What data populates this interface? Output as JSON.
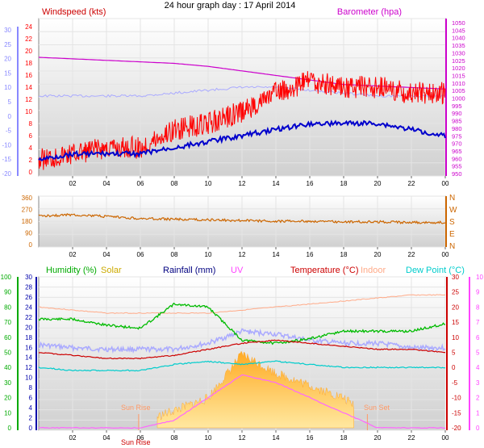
{
  "title": "24 hour graph day : 17 April 2014",
  "colors": {
    "wind": "#ff0000",
    "gust_dark": "#0000cc",
    "baro": "#cc00cc",
    "baro_light": "#aaaaff",
    "dir": "#cc6600",
    "humidity": "#00bb00",
    "solar": "#ccaa00",
    "rain": "#000080",
    "uv": "#ff66ff",
    "temperature": "#cc0000",
    "indoor": "#ffaa88",
    "dewpoint": "#00cccc",
    "left_axis": "#8888ff",
    "rain_axis": "#0000aa",
    "hum_axis": "#00aa00",
    "uv_axis": "#ff44ff"
  },
  "panels": {
    "wind": {
      "left_label": "Windspeed (kts)",
      "right_label": "Barometer (hpa)",
      "left_ticks": [
        "24",
        "22",
        "20",
        "18",
        "16",
        "14",
        "12",
        "10",
        "8",
        "6",
        "4",
        "2",
        "0"
      ],
      "outer_left_ticks": [
        "30",
        "25",
        "20",
        "15",
        "10",
        "5",
        "0",
        "-5",
        "-10",
        "-15",
        "-20"
      ],
      "right_ticks": [
        "1050",
        "1045",
        "1040",
        "1035",
        "1030",
        "1025",
        "1020",
        "1015",
        "1010",
        "1005",
        "1000",
        "995",
        "990",
        "985",
        "980",
        "975",
        "970",
        "965",
        "960",
        "955",
        "950"
      ]
    },
    "direction": {
      "left_ticks": [
        "360",
        "270",
        "180",
        "90",
        "0"
      ],
      "right_ticks": [
        "N",
        "W",
        "S",
        "E",
        "N"
      ]
    },
    "lower": {
      "labels": {
        "humidity": "Humidity (%)",
        "solar": "Solar",
        "rain": "Rainfall (mm)",
        "uv": "UV",
        "temperature": "Temperature (°C)",
        "indoor": "Indoor",
        "dewpoint": "Dew Point (°C)"
      },
      "hum_ticks": [
        "100",
        "90",
        "80",
        "70",
        "60",
        "50",
        "40",
        "30",
        "20",
        "10",
        "0"
      ],
      "left_ticks": [
        "30",
        "28",
        "26",
        "24",
        "22",
        "20",
        "18",
        "16",
        "14",
        "12",
        "10",
        "8",
        "6",
        "4",
        "2",
        "0"
      ],
      "right_temp_ticks": [
        "30",
        "25",
        "20",
        "15",
        "10",
        "5",
        "0",
        "-5",
        "-10",
        "-15",
        "-20"
      ],
      "right_uv_ticks": [
        "10",
        "9",
        "8",
        "7",
        "6",
        "5",
        "4",
        "3",
        "2",
        "1",
        "0"
      ],
      "sunrise_label": "Sun Rise",
      "sunset_label": "Sun Set",
      "sunrise_time": "Sun Rise"
    }
  },
  "x_ticks": [
    "02",
    "04",
    "06",
    "08",
    "10",
    "12",
    "14",
    "16",
    "18",
    "20",
    "22",
    "00"
  ],
  "chart_data": [
    {
      "type": "line",
      "title": "24 hour graph day : 17 April 2014",
      "x_hours": [
        0,
        2,
        4,
        6,
        8,
        10,
        12,
        14,
        16,
        18,
        20,
        22,
        24
      ],
      "series": [
        {
          "name": "Windspeed (kts)",
          "values": [
            2,
            3,
            4,
            4,
            7,
            8,
            10,
            13,
            15,
            14,
            14,
            13,
            13
          ]
        },
        {
          "name": "Barometer (hpa)",
          "values": [
            1027,
            1026,
            1025,
            1024,
            1023,
            1021,
            1018,
            1015,
            1012,
            1009,
            1008,
            1007,
            1006
          ]
        }
      ],
      "extra_series": [
        {
          "values": [
            2,
            3,
            3,
            3,
            4,
            5,
            6,
            7,
            8,
            8,
            8,
            7,
            6
          ]
        },
        {
          "values": [
            7,
            7,
            7,
            7,
            8,
            9,
            10,
            10,
            9,
            8,
            7,
            7,
            7
          ]
        }
      ],
      "ylim_left": [
        0,
        24
      ],
      "ylim_right": [
        950,
        1050
      ]
    },
    {
      "type": "line",
      "x_hours": [
        0,
        2,
        4,
        6,
        8,
        10,
        12,
        14,
        16,
        18,
        20,
        22,
        24
      ],
      "series": [
        {
          "values": [
            220,
            230,
            215,
            200,
            195,
            190,
            185,
            180,
            180,
            175,
            175,
            170,
            170
          ]
        }
      ],
      "ylim": [
        0,
        360
      ]
    },
    {
      "type": "line",
      "x_hours": [
        0,
        2,
        4,
        6,
        8,
        10,
        12,
        14,
        16,
        18,
        20,
        22,
        24
      ],
      "series": [
        {
          "name": "Humidity (%)",
          "values": [
            72,
            72,
            68,
            66,
            82,
            80,
            58,
            56,
            59,
            64,
            64,
            64,
            69
          ]
        },
        {
          "name": "Temperature (°C)",
          "values": [
            5,
            4,
            3,
            3,
            4,
            6,
            8,
            9,
            8,
            7,
            6,
            6,
            5
          ]
        },
        {
          "name": "Indoor",
          "values": [
            20,
            19,
            18,
            18,
            18,
            18,
            19,
            20,
            21,
            22,
            23,
            24,
            24
          ]
        },
        {
          "name": "Dew Point (°C)",
          "values": [
            0,
            -1,
            -1,
            -1,
            1,
            2,
            1,
            2,
            1,
            0,
            0,
            0,
            0
          ]
        },
        {
          "name": "Solar",
          "values": [
            0,
            0,
            0,
            0,
            20,
            40,
            110,
            80,
            60,
            40,
            0,
            0,
            0
          ]
        },
        {
          "name": "UV",
          "values": [
            0,
            0,
            0,
            0,
            0.5,
            2,
            3.5,
            3,
            2,
            1,
            0,
            0,
            0
          ]
        }
      ],
      "extra_series": [
        {
          "values": [
            55,
            53,
            52,
            52,
            52,
            56,
            64,
            62,
            58,
            56,
            56,
            53,
            53
          ]
        }
      ],
      "hum_ylim": [
        0,
        100
      ],
      "temp_ylim": [
        -20,
        30
      ],
      "uv_ylim": [
        0,
        10
      ]
    }
  ]
}
